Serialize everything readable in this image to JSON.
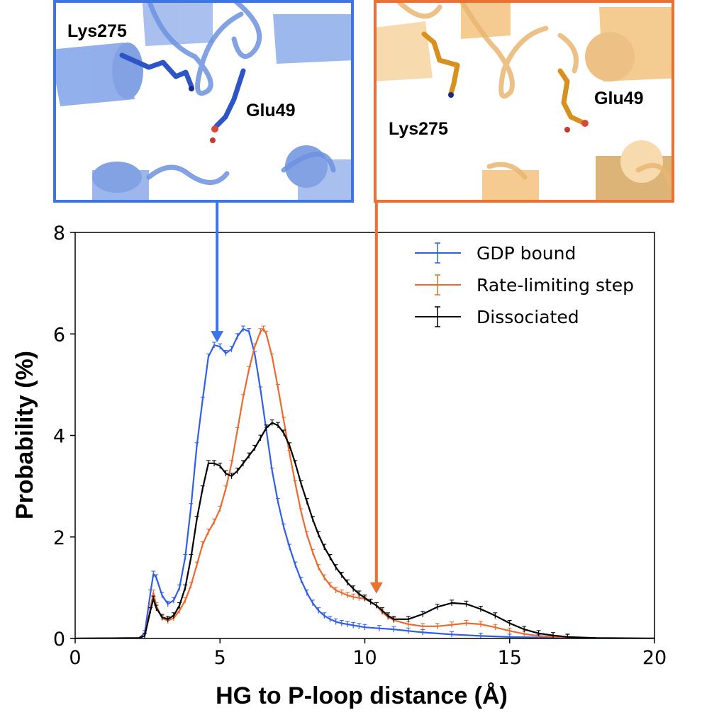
{
  "colors": {
    "gdp": "#2f5fe6",
    "rate": "#eb6a2e",
    "dissociated": "#000000",
    "blue_frame": "#3b75e8",
    "orange_frame": "#ee7030",
    "blue_protein": "#7fa2e8",
    "blue_stick": "#2d55c5",
    "orange_protein": "#f3c27e",
    "orange_stick": "#d8901e"
  },
  "panels": {
    "left": {
      "label_lys": "Lys275",
      "label_glu": "Glu49"
    },
    "right": {
      "label_lys": "Lys275",
      "label_glu": "Glu49"
    }
  },
  "chart_data": {
    "type": "line",
    "xlabel": "HG to P-loop distance (Å)",
    "ylabel": "Probability (%)",
    "xlim": [
      0,
      20
    ],
    "ylim": [
      0,
      8
    ],
    "xticks": [
      0,
      5,
      10,
      15,
      20
    ],
    "yticks": [
      0,
      2,
      4,
      6,
      8
    ],
    "legend_position": "top-right",
    "grid": false,
    "arrows": [
      {
        "series": "GDP bound",
        "x": 4.9,
        "y": 5.75
      },
      {
        "series": "Rate-limiting step",
        "x": 10.4,
        "y": 0.8
      }
    ],
    "series": [
      {
        "name": "GDP bound",
        "color": "#2f5fe6",
        "x": [
          0,
          2.2,
          2.4,
          2.6,
          2.7,
          2.8,
          3.0,
          3.2,
          3.4,
          3.6,
          3.8,
          4.0,
          4.2,
          4.4,
          4.6,
          4.8,
          5.0,
          5.2,
          5.4,
          5.6,
          5.8,
          6.0,
          6.2,
          6.4,
          6.6,
          6.8,
          7.0,
          7.2,
          7.4,
          7.6,
          7.8,
          8.0,
          8.2,
          8.4,
          8.6,
          8.8,
          9.0,
          9.2,
          9.4,
          9.6,
          9.8,
          10.0,
          10.5,
          11.0,
          11.5,
          12.0,
          13.0,
          14.0,
          15.0,
          16.0,
          17.0,
          18.0,
          20.0
        ],
        "y": [
          0,
          0.01,
          0.1,
          0.9,
          1.27,
          1.2,
          0.85,
          0.68,
          0.75,
          1.0,
          1.6,
          2.6,
          3.8,
          4.7,
          5.55,
          5.78,
          5.75,
          5.62,
          5.7,
          5.95,
          6.1,
          6.05,
          5.6,
          4.9,
          4.1,
          3.3,
          2.7,
          2.2,
          1.8,
          1.45,
          1.15,
          0.9,
          0.7,
          0.55,
          0.45,
          0.38,
          0.33,
          0.3,
          0.28,
          0.26,
          0.24,
          0.22,
          0.2,
          0.18,
          0.15,
          0.12,
          0.08,
          0.05,
          0.03,
          0.02,
          0.01,
          0.0,
          0.0
        ]
      },
      {
        "name": "Rate-limiting step",
        "color": "#eb6a2e",
        "x": [
          0,
          2.2,
          2.4,
          2.6,
          2.7,
          2.8,
          3.0,
          3.2,
          3.4,
          3.6,
          3.8,
          4.0,
          4.2,
          4.4,
          4.6,
          4.8,
          5.0,
          5.2,
          5.4,
          5.6,
          5.8,
          6.0,
          6.2,
          6.4,
          6.5,
          6.6,
          6.8,
          7.0,
          7.2,
          7.4,
          7.6,
          7.8,
          8.0,
          8.2,
          8.4,
          8.6,
          8.8,
          9.0,
          9.2,
          9.4,
          9.6,
          9.8,
          10.0,
          10.2,
          10.4,
          10.6,
          10.8,
          11.0,
          11.5,
          12.0,
          12.5,
          13.0,
          13.5,
          14.0,
          14.5,
          15.0,
          15.5,
          16.0,
          17.0,
          18.0,
          20.0
        ],
        "y": [
          0,
          0.01,
          0.05,
          0.6,
          0.9,
          0.65,
          0.4,
          0.35,
          0.4,
          0.55,
          0.75,
          1.05,
          1.45,
          1.85,
          2.1,
          2.3,
          2.55,
          2.95,
          3.45,
          4.1,
          4.75,
          5.3,
          5.75,
          6.05,
          6.1,
          6.0,
          5.55,
          4.95,
          4.3,
          3.65,
          3.05,
          2.5,
          2.05,
          1.7,
          1.4,
          1.2,
          1.05,
          0.95,
          0.9,
          0.85,
          0.82,
          0.8,
          0.78,
          0.72,
          0.65,
          0.52,
          0.42,
          0.36,
          0.28,
          0.24,
          0.24,
          0.27,
          0.3,
          0.28,
          0.22,
          0.15,
          0.09,
          0.05,
          0.02,
          0.01,
          0.0
        ]
      },
      {
        "name": "Dissociated",
        "color": "#000000",
        "x": [
          0,
          2.2,
          2.4,
          2.6,
          2.7,
          2.8,
          3.0,
          3.2,
          3.4,
          3.6,
          3.8,
          4.0,
          4.2,
          4.4,
          4.6,
          4.8,
          5.0,
          5.2,
          5.4,
          5.6,
          5.8,
          6.0,
          6.2,
          6.4,
          6.6,
          6.8,
          7.0,
          7.2,
          7.4,
          7.6,
          7.8,
          8.0,
          8.2,
          8.4,
          8.6,
          8.8,
          9.0,
          9.2,
          9.4,
          9.6,
          9.8,
          10.0,
          10.2,
          10.4,
          10.6,
          10.8,
          11.0,
          11.5,
          12.0,
          12.5,
          13.0,
          13.5,
          14.0,
          14.5,
          15.0,
          15.5,
          16.0,
          16.5,
          17.0,
          18.0,
          19.0,
          20.0
        ],
        "y": [
          0,
          0.01,
          0.05,
          0.55,
          0.78,
          0.6,
          0.42,
          0.38,
          0.45,
          0.65,
          1.0,
          1.6,
          2.35,
          2.95,
          3.45,
          3.45,
          3.4,
          3.25,
          3.2,
          3.3,
          3.45,
          3.6,
          3.75,
          3.95,
          4.15,
          4.25,
          4.2,
          4.05,
          3.8,
          3.45,
          3.05,
          2.7,
          2.35,
          2.05,
          1.8,
          1.6,
          1.4,
          1.25,
          1.1,
          0.98,
          0.88,
          0.8,
          0.72,
          0.65,
          0.55,
          0.45,
          0.38,
          0.38,
          0.48,
          0.62,
          0.7,
          0.68,
          0.58,
          0.45,
          0.3,
          0.18,
          0.1,
          0.06,
          0.03,
          0.01,
          0.005,
          0.0
        ]
      }
    ]
  }
}
